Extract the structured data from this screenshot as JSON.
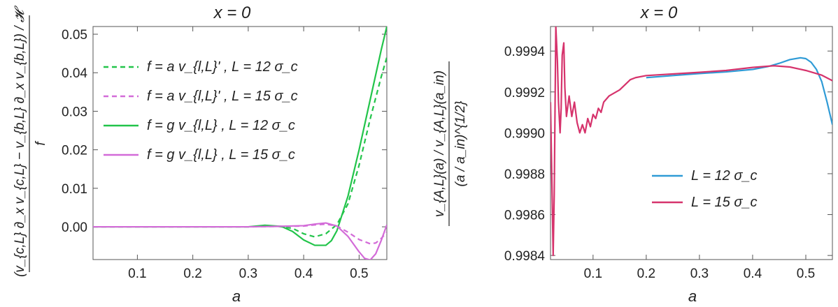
{
  "chart_data": [
    {
      "type": "line",
      "title": "x = 0",
      "xlabel": "a",
      "ylabel_num": "(v_{c,L} ∂_x v_{c,L} − v_{b,L} ∂_x v_{b,L}) / 𝓗",
      "ylabel_den": "f",
      "xlim": [
        0.02,
        0.55
      ],
      "ylim": [
        -0.0085,
        0.052
      ],
      "xticks": [
        0.1,
        0.2,
        0.3,
        0.4,
        0.5
      ],
      "yticks": [
        0.0,
        0.01,
        0.02,
        0.03,
        0.04,
        0.05
      ],
      "legend_position": "top-left",
      "series": [
        {
          "name": "f = a v_{l,L}' , L = 12 σ_c",
          "color": "#22c44a",
          "dashed": true,
          "x": [
            0.02,
            0.3,
            0.35,
            0.38,
            0.4,
            0.42,
            0.44,
            0.46,
            0.48,
            0.5,
            0.52,
            0.54,
            0.55
          ],
          "y": [
            0,
            0,
            0.0002,
            -0.0004,
            -0.0018,
            -0.0026,
            -0.0018,
            0.0006,
            0.006,
            0.016,
            0.028,
            0.039,
            0.044
          ]
        },
        {
          "name": "f = a v_{l,L}' , L = 15 σ_c",
          "color": "#d36bd8",
          "dashed": true,
          "x": [
            0.02,
            0.3,
            0.35,
            0.4,
            0.42,
            0.44,
            0.46,
            0.48,
            0.5,
            0.52,
            0.53,
            0.54,
            0.55
          ],
          "y": [
            0,
            0,
            0.0001,
            0.0002,
            0.0005,
            0.0007,
            0.0002,
            -0.0014,
            -0.0033,
            -0.0044,
            -0.0042,
            -0.003,
            -0.0014
          ]
        },
        {
          "name": "f = g v_{l,L} , L = 12 σ_c",
          "color": "#22c44a",
          "dashed": false,
          "x": [
            0.02,
            0.3,
            0.33,
            0.36,
            0.38,
            0.4,
            0.42,
            0.44,
            0.45,
            0.46,
            0.48,
            0.5,
            0.52,
            0.54,
            0.55
          ],
          "y": [
            0,
            0,
            0.0004,
            0.0001,
            -0.0012,
            -0.0034,
            -0.0048,
            -0.0048,
            -0.0036,
            -0.001,
            0.008,
            0.02,
            0.033,
            0.046,
            0.052
          ]
        },
        {
          "name": "f = g v_{l,L} , L = 15 σ_c",
          "color": "#d36bd8",
          "dashed": false,
          "x": [
            0.02,
            0.3,
            0.35,
            0.4,
            0.42,
            0.44,
            0.46,
            0.48,
            0.5,
            0.51,
            0.52,
            0.53,
            0.54,
            0.55
          ],
          "y": [
            0,
            0,
            0.0001,
            0.0003,
            0.0007,
            0.001,
            0.0002,
            -0.0025,
            -0.0065,
            -0.0082,
            -0.0086,
            -0.007,
            -0.0035,
            0.0005
          ]
        }
      ]
    },
    {
      "type": "line",
      "title": "x = 0",
      "xlabel": "a",
      "ylabel_num": "v_{A,L}(a) / v_{A,L}(a_in)",
      "ylabel_den": "(a / a_in)^{1/2}",
      "xlim": [
        0.02,
        0.55
      ],
      "ylim": [
        0.99838,
        0.99952
      ],
      "xticks": [
        0.1,
        0.2,
        0.3,
        0.4,
        0.5
      ],
      "yticks": [
        0.9984,
        0.9986,
        0.9988,
        0.999,
        0.9992,
        0.9994
      ],
      "legend_position": "bottom-right",
      "series": [
        {
          "name": "L = 12 σ_c",
          "color": "#2f9bd6",
          "x": [
            0.2,
            0.25,
            0.3,
            0.35,
            0.4,
            0.43,
            0.45,
            0.47,
            0.49,
            0.5,
            0.51,
            0.52,
            0.53,
            0.54,
            0.55
          ],
          "y": [
            0.99927,
            0.99928,
            0.99929,
            0.999298,
            0.99931,
            0.999325,
            0.99934,
            0.999358,
            0.999367,
            0.999363,
            0.999345,
            0.99931,
            0.99925,
            0.99915,
            0.99904
          ]
        },
        {
          "name": "L = 15 σ_c",
          "color": "#d6336c",
          "x": [
            0.02,
            0.025,
            0.027,
            0.03,
            0.033,
            0.035,
            0.038,
            0.04,
            0.042,
            0.045,
            0.047,
            0.05,
            0.055,
            0.06,
            0.065,
            0.07,
            0.075,
            0.08,
            0.085,
            0.09,
            0.095,
            0.1,
            0.105,
            0.11,
            0.115,
            0.12,
            0.13,
            0.15,
            0.17,
            0.18,
            0.2,
            0.25,
            0.3,
            0.35,
            0.4,
            0.44,
            0.47,
            0.5,
            0.53,
            0.55
          ],
          "y": [
            0.99915,
            0.9984,
            0.9987,
            0.99952,
            0.99935,
            0.99915,
            0.999,
            0.99912,
            0.99938,
            0.99944,
            0.99922,
            0.99908,
            0.99918,
            0.99908,
            0.99915,
            0.99905,
            0.999,
            0.99904,
            0.999,
            0.99907,
            0.99903,
            0.99909,
            0.99907,
            0.99912,
            0.9991,
            0.99915,
            0.99918,
            0.99921,
            0.99926,
            0.99927,
            0.99928,
            0.999288,
            0.999296,
            0.999305,
            0.99932,
            0.999328,
            0.999322,
            0.999305,
            0.999282,
            0.999255
          ]
        }
      ]
    }
  ]
}
